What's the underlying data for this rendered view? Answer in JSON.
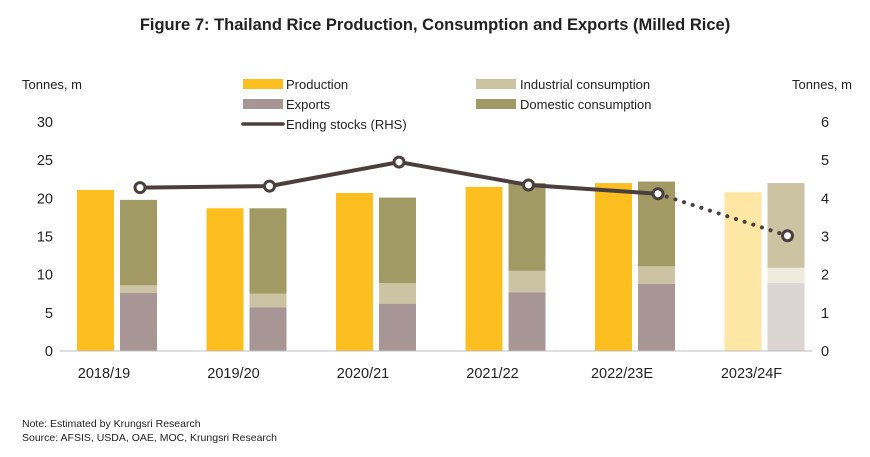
{
  "chart_data": {
    "type": "bar",
    "title": "Figure 7: Thailand Rice Production, Consumption and Exports (Milled Rice)",
    "ylabel_left": "Tonnes, m",
    "ylabel_right": "Tonnes, m",
    "ylim_left": [
      0,
      30
    ],
    "yticks_left": [
      "0",
      "5",
      "10",
      "15",
      "20",
      "25",
      "30"
    ],
    "ylim_right": [
      0,
      6
    ],
    "yticks_right": [
      "0",
      "1",
      "2",
      "3",
      "4",
      "5",
      "6"
    ],
    "categories": [
      "2018/19",
      "2019/20",
      "2020/21",
      "2021/22",
      "2022/23E",
      "2023/24F"
    ],
    "forecast_category": "2023/24F",
    "series": [
      {
        "name": "Production",
        "color": "#FDBF1F",
        "forecast_color": "#FEE6A4",
        "values": [
          21.1,
          18.7,
          20.7,
          21.5,
          22.0,
          20.8
        ]
      },
      {
        "name": "Exports",
        "color": "#A89596",
        "forecast_color": "#DCD3D3",
        "values": [
          7.6,
          5.7,
          6.2,
          7.7,
          8.8,
          8.9
        ]
      },
      {
        "name": "Industrial consumption",
        "color": "#CCC3A2",
        "forecast_color": "#EEEBDD",
        "values": [
          1.0,
          1.8,
          2.7,
          2.8,
          2.3,
          2.0
        ]
      },
      {
        "name": "Domestic consumption",
        "color": "#A19A65",
        "forecast_color": "#CCC3A2",
        "values": [
          11.2,
          11.2,
          11.2,
          11.5,
          11.1,
          11.1
        ]
      },
      {
        "name": "Ending stocks (RHS)",
        "color": "#4A3E3F",
        "axis": "right",
        "values": [
          4.28,
          4.32,
          4.95,
          4.35,
          4.12,
          3.02
        ]
      }
    ],
    "legend": {
      "position": "top",
      "items": [
        "Production",
        "Industrial consumption",
        "Exports",
        "Domestic consumption",
        "Ending stocks (RHS)"
      ]
    },
    "notes": [
      "Note: Estimated by Krungsri Research",
      "Source: AFSIS, USDA, OAE, MOC, Krungsri Research"
    ]
  }
}
